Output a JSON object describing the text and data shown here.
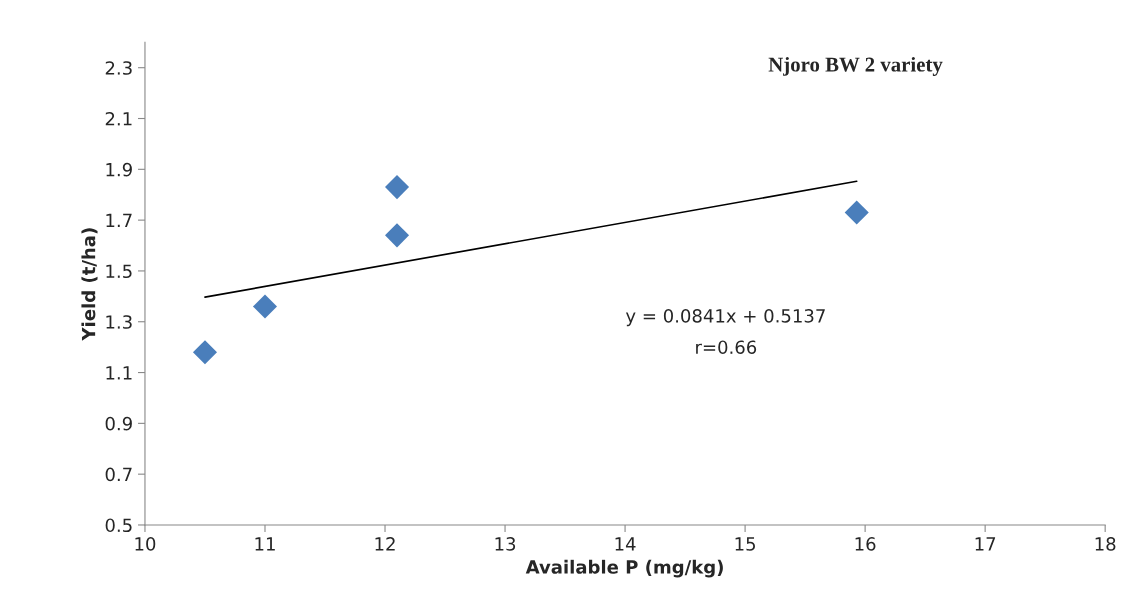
{
  "chart_data": {
    "type": "scatter",
    "title": "Njoro BW 2 variety",
    "xlabel": "Available P (mg/kg)",
    "ylabel": "Yield (t/ha)",
    "series": [
      {
        "color": "#4a7ebb",
        "marker": "diamond",
        "x": [
          10.5,
          11,
          12.1,
          12.1,
          15.93
        ],
        "values": [
          1.18,
          1.36,
          1.64,
          1.83,
          1.73
        ]
      },
      {
        "type": "line",
        "color": "#000000",
        "marker": "none",
        "line_style": "solid",
        "x": [
          10.5,
          15.93
        ],
        "values": [
          1.397,
          1.853
        ]
      }
    ],
    "annotations": [
      "y = 0.0841x + 0.5137",
      "r=0.66"
    ],
    "xlim": [
      10,
      18
    ],
    "xticks": [
      10,
      11,
      12,
      13,
      14,
      15,
      16,
      17,
      18
    ],
    "ylim": [
      0.5,
      2.4
    ],
    "yticks": [
      0.5,
      0.7,
      0.9,
      1.1,
      1.3,
      1.5,
      1.7,
      1.9,
      2.1,
      2.3
    ],
    "grid": false,
    "legend": false
  }
}
